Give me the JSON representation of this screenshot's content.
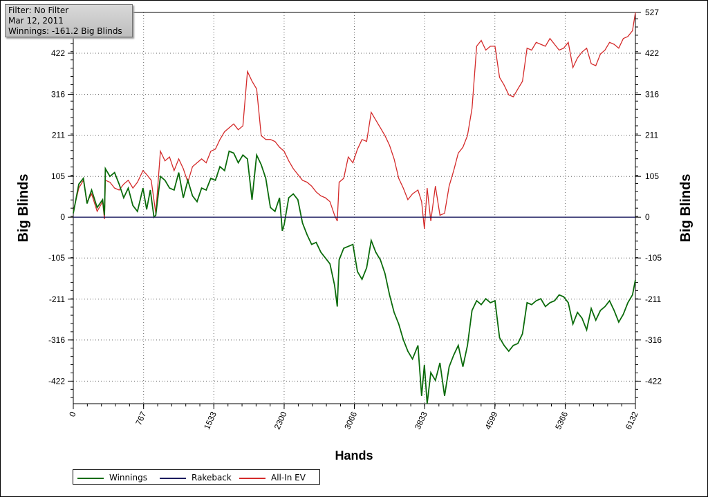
{
  "filter_box": {
    "line1": "Filter: No Filter",
    "line2": "Mar 12, 2011",
    "line3": "Winnings: -161.2 Big Blinds"
  },
  "chart_data": {
    "type": "line",
    "xlabel": "Hands",
    "ylabel": "Big Blinds",
    "xlim": [
      0,
      6132
    ],
    "ylim": [
      -480,
      527
    ],
    "x_ticks": [
      0,
      767,
      1533,
      2300,
      3066,
      3833,
      4599,
      5366,
      6132
    ],
    "y_ticks": [
      -422,
      -316,
      -211,
      -105,
      0,
      105,
      211,
      316,
      422
    ],
    "y_ticks_right": [
      -422,
      -316,
      -211,
      -105,
      0,
      105,
      211,
      316,
      422,
      527
    ],
    "grid": true,
    "legend_position": "bottom-left",
    "series": [
      {
        "name": "Winnings",
        "color": "#0b6b0b",
        "points": [
          [
            0,
            10
          ],
          [
            60,
            85
          ],
          [
            110,
            100
          ],
          [
            150,
            35
          ],
          [
            200,
            70
          ],
          [
            260,
            25
          ],
          [
            320,
            45
          ],
          [
            340,
            5
          ],
          [
            350,
            125
          ],
          [
            400,
            105
          ],
          [
            450,
            115
          ],
          [
            500,
            85
          ],
          [
            550,
            50
          ],
          [
            600,
            75
          ],
          [
            650,
            30
          ],
          [
            700,
            15
          ],
          [
            760,
            75
          ],
          [
            800,
            20
          ],
          [
            840,
            70
          ],
          [
            880,
            0
          ],
          [
            900,
            5
          ],
          [
            950,
            105
          ],
          [
            1000,
            95
          ],
          [
            1050,
            75
          ],
          [
            1100,
            70
          ],
          [
            1150,
            115
          ],
          [
            1200,
            50
          ],
          [
            1250,
            95
          ],
          [
            1300,
            55
          ],
          [
            1350,
            40
          ],
          [
            1400,
            75
          ],
          [
            1450,
            70
          ],
          [
            1500,
            100
          ],
          [
            1550,
            95
          ],
          [
            1600,
            130
          ],
          [
            1650,
            120
          ],
          [
            1700,
            170
          ],
          [
            1750,
            165
          ],
          [
            1800,
            140
          ],
          [
            1850,
            160
          ],
          [
            1900,
            150
          ],
          [
            1950,
            45
          ],
          [
            2000,
            160
          ],
          [
            2050,
            135
          ],
          [
            2100,
            100
          ],
          [
            2150,
            25
          ],
          [
            2200,
            15
          ],
          [
            2250,
            50
          ],
          [
            2280,
            -35
          ],
          [
            2300,
            -20
          ],
          [
            2350,
            50
          ],
          [
            2400,
            60
          ],
          [
            2450,
            45
          ],
          [
            2500,
            -15
          ],
          [
            2550,
            -45
          ],
          [
            2600,
            -70
          ],
          [
            2650,
            -65
          ],
          [
            2700,
            -90
          ],
          [
            2750,
            -105
          ],
          [
            2800,
            -120
          ],
          [
            2850,
            -175
          ],
          [
            2880,
            -230
          ],
          [
            2900,
            -110
          ],
          [
            2950,
            -80
          ],
          [
            3000,
            -75
          ],
          [
            3050,
            -70
          ],
          [
            3100,
            -140
          ],
          [
            3150,
            -160
          ],
          [
            3200,
            -130
          ],
          [
            3250,
            -60
          ],
          [
            3300,
            -90
          ],
          [
            3350,
            -110
          ],
          [
            3400,
            -145
          ],
          [
            3450,
            -200
          ],
          [
            3500,
            -245
          ],
          [
            3550,
            -275
          ],
          [
            3600,
            -315
          ],
          [
            3650,
            -345
          ],
          [
            3700,
            -365
          ],
          [
            3760,
            -330
          ],
          [
            3800,
            -460
          ],
          [
            3830,
            -380
          ],
          [
            3860,
            -480
          ],
          [
            3900,
            -400
          ],
          [
            3950,
            -420
          ],
          [
            4000,
            -375
          ],
          [
            4050,
            -460
          ],
          [
            4100,
            -385
          ],
          [
            4150,
            -355
          ],
          [
            4200,
            -330
          ],
          [
            4250,
            -385
          ],
          [
            4300,
            -330
          ],
          [
            4350,
            -240
          ],
          [
            4400,
            -215
          ],
          [
            4450,
            -225
          ],
          [
            4500,
            -210
          ],
          [
            4550,
            -220
          ],
          [
            4600,
            -215
          ],
          [
            4650,
            -310
          ],
          [
            4700,
            -330
          ],
          [
            4750,
            -345
          ],
          [
            4800,
            -330
          ],
          [
            4850,
            -325
          ],
          [
            4900,
            -300
          ],
          [
            4950,
            -220
          ],
          [
            5000,
            -225
          ],
          [
            5050,
            -215
          ],
          [
            5100,
            -210
          ],
          [
            5150,
            -230
          ],
          [
            5200,
            -220
          ],
          [
            5250,
            -215
          ],
          [
            5300,
            -200
          ],
          [
            5350,
            -205
          ],
          [
            5400,
            -220
          ],
          [
            5450,
            -275
          ],
          [
            5500,
            -245
          ],
          [
            5550,
            -260
          ],
          [
            5600,
            -290
          ],
          [
            5650,
            -235
          ],
          [
            5700,
            -265
          ],
          [
            5750,
            -240
          ],
          [
            5800,
            -230
          ],
          [
            5850,
            -215
          ],
          [
            5900,
            -240
          ],
          [
            5950,
            -270
          ],
          [
            6000,
            -250
          ],
          [
            6050,
            -220
          ],
          [
            6100,
            -200
          ],
          [
            6132,
            -161.2
          ]
        ]
      },
      {
        "name": "Rakeback",
        "color": "#1a1a5e",
        "points": [
          [
            0,
            0
          ],
          [
            6132,
            0
          ]
        ]
      },
      {
        "name": "All-In EV",
        "color": "#d42a2a",
        "points": [
          [
            0,
            15
          ],
          [
            60,
            75
          ],
          [
            110,
            95
          ],
          [
            150,
            40
          ],
          [
            200,
            60
          ],
          [
            260,
            15
          ],
          [
            320,
            40
          ],
          [
            340,
            -5
          ],
          [
            350,
            95
          ],
          [
            400,
            90
          ],
          [
            450,
            75
          ],
          [
            500,
            70
          ],
          [
            550,
            85
          ],
          [
            600,
            95
          ],
          [
            650,
            75
          ],
          [
            700,
            90
          ],
          [
            760,
            120
          ],
          [
            800,
            110
          ],
          [
            850,
            95
          ],
          [
            900,
            10
          ],
          [
            950,
            170
          ],
          [
            1000,
            145
          ],
          [
            1050,
            155
          ],
          [
            1100,
            120
          ],
          [
            1150,
            150
          ],
          [
            1200,
            125
          ],
          [
            1250,
            90
          ],
          [
            1300,
            130
          ],
          [
            1350,
            140
          ],
          [
            1400,
            150
          ],
          [
            1450,
            140
          ],
          [
            1500,
            170
          ],
          [
            1550,
            175
          ],
          [
            1600,
            200
          ],
          [
            1650,
            220
          ],
          [
            1700,
            230
          ],
          [
            1750,
            240
          ],
          [
            1800,
            225
          ],
          [
            1850,
            235
          ],
          [
            1900,
            375
          ],
          [
            1950,
            350
          ],
          [
            2000,
            330
          ],
          [
            2050,
            210
          ],
          [
            2100,
            200
          ],
          [
            2150,
            200
          ],
          [
            2200,
            195
          ],
          [
            2250,
            180
          ],
          [
            2300,
            170
          ],
          [
            2350,
            145
          ],
          [
            2400,
            125
          ],
          [
            2450,
            110
          ],
          [
            2500,
            95
          ],
          [
            2550,
            90
          ],
          [
            2600,
            80
          ],
          [
            2650,
            65
          ],
          [
            2700,
            55
          ],
          [
            2750,
            50
          ],
          [
            2800,
            40
          ],
          [
            2850,
            5
          ],
          [
            2880,
            -10
          ],
          [
            2900,
            90
          ],
          [
            2950,
            100
          ],
          [
            3000,
            155
          ],
          [
            3050,
            140
          ],
          [
            3100,
            175
          ],
          [
            3150,
            200
          ],
          [
            3200,
            195
          ],
          [
            3250,
            270
          ],
          [
            3300,
            250
          ],
          [
            3350,
            230
          ],
          [
            3400,
            210
          ],
          [
            3450,
            185
          ],
          [
            3500,
            150
          ],
          [
            3550,
            100
          ],
          [
            3600,
            75
          ],
          [
            3650,
            45
          ],
          [
            3700,
            60
          ],
          [
            3760,
            70
          ],
          [
            3800,
            40
          ],
          [
            3830,
            -30
          ],
          [
            3860,
            75
          ],
          [
            3900,
            -10
          ],
          [
            3950,
            80
          ],
          [
            4000,
            5
          ],
          [
            4050,
            10
          ],
          [
            4100,
            80
          ],
          [
            4150,
            120
          ],
          [
            4200,
            165
          ],
          [
            4250,
            180
          ],
          [
            4300,
            210
          ],
          [
            4350,
            280
          ],
          [
            4400,
            440
          ],
          [
            4450,
            455
          ],
          [
            4500,
            430
          ],
          [
            4550,
            440
          ],
          [
            4600,
            440
          ],
          [
            4650,
            360
          ],
          [
            4700,
            340
          ],
          [
            4750,
            315
          ],
          [
            4800,
            310
          ],
          [
            4850,
            330
          ],
          [
            4900,
            350
          ],
          [
            4950,
            435
          ],
          [
            5000,
            430
          ],
          [
            5050,
            450
          ],
          [
            5100,
            445
          ],
          [
            5150,
            440
          ],
          [
            5200,
            460
          ],
          [
            5250,
            445
          ],
          [
            5300,
            430
          ],
          [
            5350,
            435
          ],
          [
            5400,
            450
          ],
          [
            5450,
            385
          ],
          [
            5500,
            410
          ],
          [
            5550,
            425
          ],
          [
            5600,
            435
          ],
          [
            5650,
            395
          ],
          [
            5700,
            390
          ],
          [
            5750,
            420
          ],
          [
            5800,
            430
          ],
          [
            5850,
            450
          ],
          [
            5900,
            445
          ],
          [
            5950,
            435
          ],
          [
            6000,
            460
          ],
          [
            6050,
            465
          ],
          [
            6100,
            480
          ],
          [
            6132,
            527
          ]
        ]
      }
    ]
  },
  "legend": {
    "items": [
      {
        "label": "Winnings",
        "color": "#0b6b0b"
      },
      {
        "label": "Rakeback",
        "color": "#1a1a5e"
      },
      {
        "label": "All-In EV",
        "color": "#d42a2a"
      }
    ]
  }
}
